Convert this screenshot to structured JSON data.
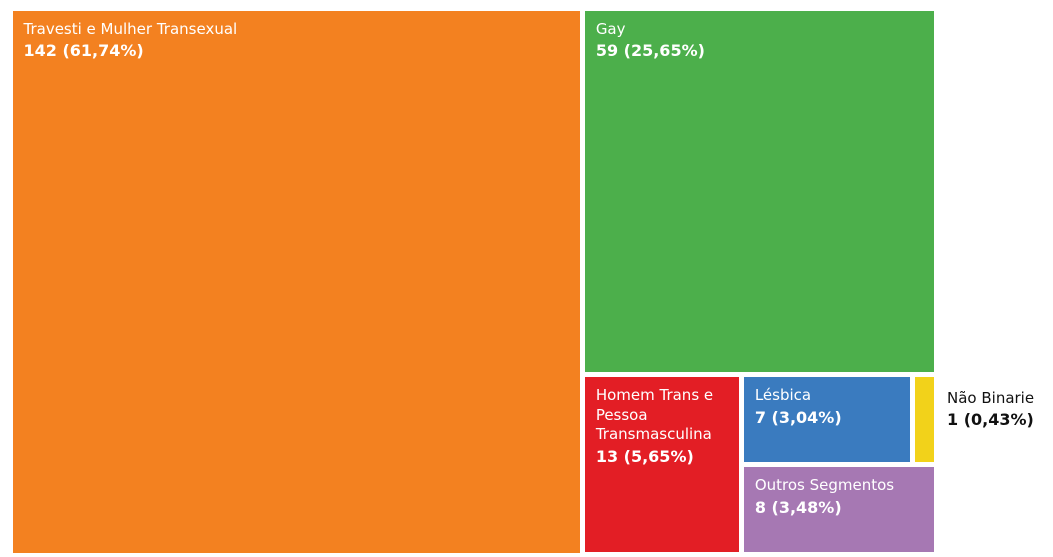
{
  "chart_data": {
    "type": "treemap",
    "categories": [
      "Travesti e Mulher Transexual",
      "Gay",
      "Homem Trans e Pessoa Transmasculina",
      "Lésbica",
      "Não Binarie",
      "Outros Segmentos"
    ],
    "values": [
      142,
      59,
      13,
      7,
      1,
      8
    ],
    "value_labels": [
      "142 (61,74%)",
      "59 (25,65%)",
      "13 (5,65%)",
      "7 (3,04%)",
      "1 (0,43%)",
      "8 (3,48%)"
    ],
    "colors": [
      "#f38120",
      "#4caf4b",
      "#e31e25",
      "#3a7bbf",
      "#f2d21a",
      "#a678b3"
    ]
  }
}
